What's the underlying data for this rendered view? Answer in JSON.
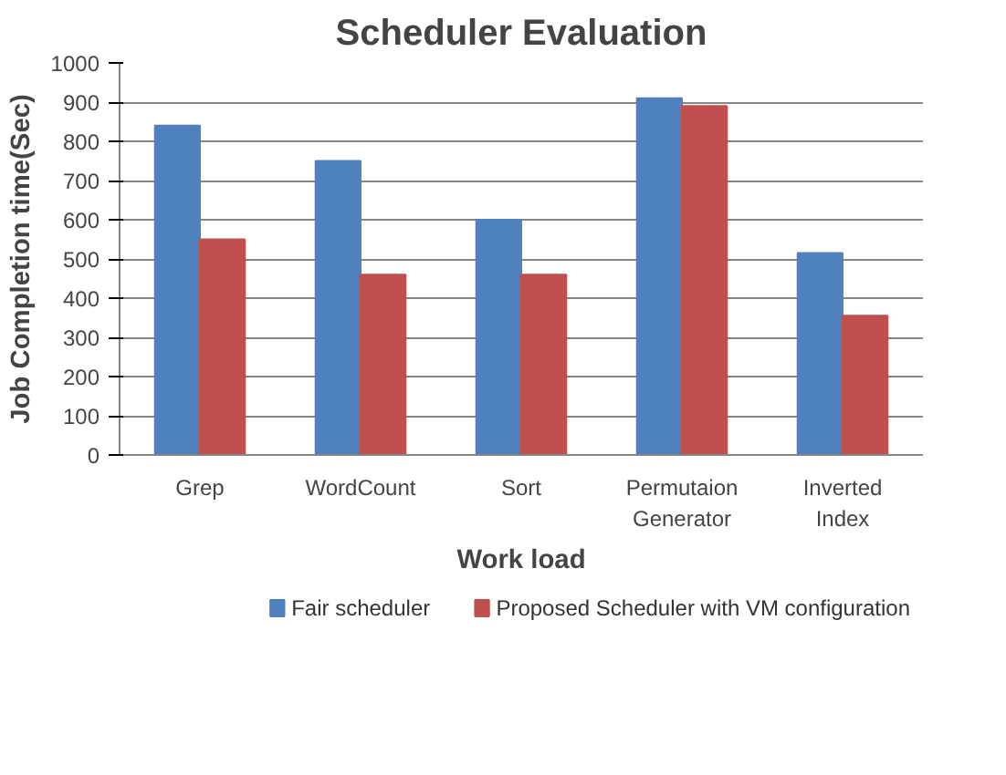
{
  "chart_data": {
    "type": "bar",
    "title": "Scheduler Evaluation",
    "xlabel": "Work load",
    "ylabel": "Job Completion time(Sec)",
    "categories": [
      "Grep",
      "WordCount",
      "Sort",
      "Permutaion Generator",
      "Inverted Index"
    ],
    "series": [
      {
        "name": "Fair scheduler",
        "color": "#4f81bd",
        "values": [
          840,
          750,
          600,
          910,
          515
        ]
      },
      {
        "name": "Proposed Scheduler with VM configuration",
        "color": "#c0504d",
        "values": [
          550,
          460,
          460,
          890,
          355
        ]
      }
    ],
    "ylim": [
      0,
      1000
    ],
    "yticks": [
      0,
      100,
      200,
      300,
      400,
      500,
      600,
      700,
      800,
      900,
      1000
    ],
    "grid": "y",
    "legend": "bottom"
  }
}
